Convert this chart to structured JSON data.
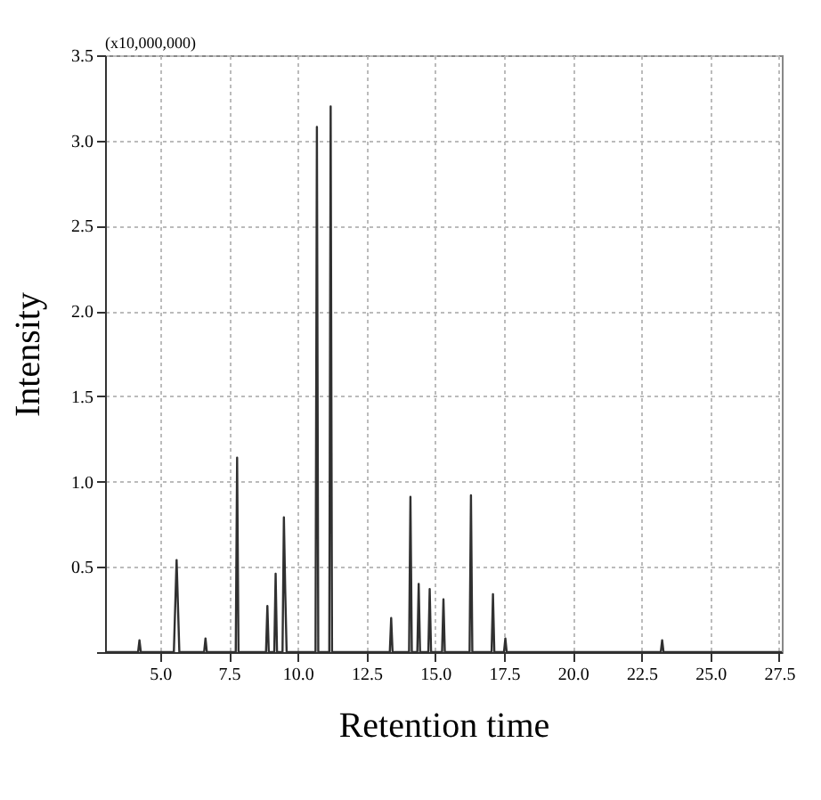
{
  "chart_data": {
    "type": "line",
    "xlabel": "Retention time",
    "ylabel": "Intensity",
    "annotations": [
      "(x10,000,000)"
    ],
    "x": [
      3.0,
      4.2,
      4.25,
      4.3,
      5.5,
      5.6,
      5.7,
      6.6,
      6.65,
      6.7,
      7.75,
      7.8,
      7.85,
      8.85,
      8.9,
      8.95,
      9.15,
      9.2,
      9.25,
      9.45,
      9.5,
      9.55,
      9.6,
      10.65,
      10.7,
      10.75,
      11.15,
      11.2,
      11.25,
      13.35,
      13.4,
      13.45,
      14.05,
      14.1,
      14.15,
      14.35,
      14.4,
      14.45,
      14.75,
      14.8,
      14.85,
      15.25,
      15.3,
      15.35,
      16.25,
      16.3,
      16.35,
      17.05,
      17.1,
      17.15,
      17.5,
      17.55,
      17.6,
      23.2,
      23.25,
      23.3,
      27.6
    ],
    "series": [
      {
        "color": "#303030",
        "values": [
          0,
          0,
          0.07,
          0,
          0,
          0.54,
          0,
          0,
          0.08,
          0,
          0,
          1.14,
          0,
          0,
          0.27,
          0,
          0,
          0.46,
          0,
          0,
          0.79,
          0.35,
          0,
          0,
          3.08,
          0,
          0,
          3.2,
          0,
          0,
          0.2,
          0,
          0,
          0.91,
          0,
          0,
          0.4,
          0,
          0,
          0.37,
          0,
          0,
          0.31,
          0,
          0,
          0.92,
          0,
          0,
          0.34,
          0,
          0,
          0.08,
          0,
          0,
          0.07,
          0,
          0
        ]
      }
    ],
    "xlim": [
      3.0,
      27.6
    ],
    "ylim": [
      0,
      3.5
    ],
    "xticks": [
      {
        "value": 5,
        "label": "5.0"
      },
      7.5,
      {
        "value": 10,
        "label": "10.0"
      },
      12.5,
      {
        "value": 15,
        "label": "15.0"
      },
      17.5,
      {
        "value": 20,
        "label": "20.0"
      },
      22.5,
      {
        "value": 25,
        "label": "25.0"
      },
      27.5
    ],
    "yticks": [
      {
        "value": 0,
        "label": null
      },
      0.5,
      {
        "value": 1,
        "label": "1.0"
      },
      1.5,
      {
        "value": 2,
        "label": "2.0"
      },
      2.5,
      {
        "value": 3,
        "label": "3.0"
      },
      3.5
    ],
    "grid": true,
    "legend": false,
    "marker": "none",
    "line_style": "solid"
  }
}
